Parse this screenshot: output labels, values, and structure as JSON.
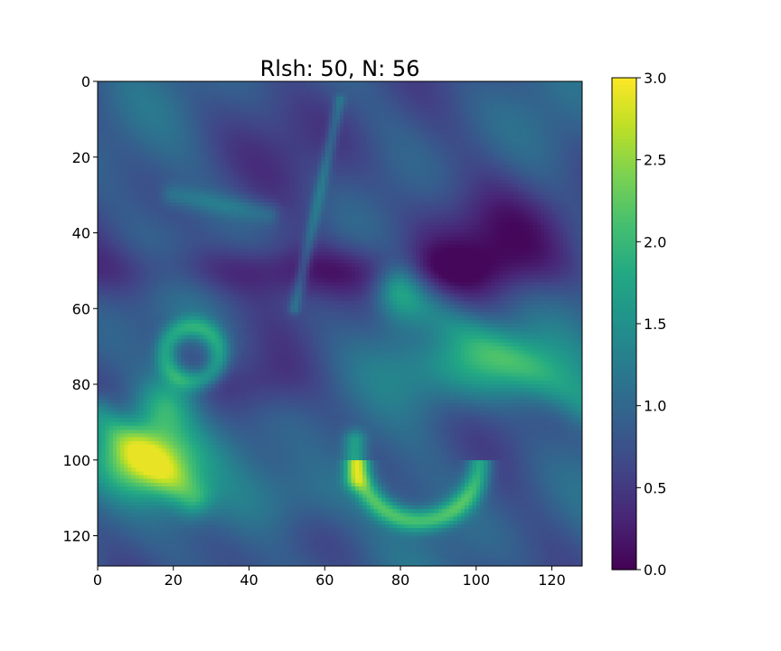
{
  "chart_data": {
    "type": "heatmap",
    "title": "Rlsh: 50, N: 56",
    "xlabel": "",
    "ylabel": "",
    "grid_size": [
      128,
      128
    ],
    "xlim": [
      0,
      128
    ],
    "ylim": [
      128,
      0
    ],
    "x_ticks": [
      "0",
      "20",
      "40",
      "60",
      "80",
      "100",
      "120"
    ],
    "y_ticks": [
      "0",
      "20",
      "40",
      "60",
      "80",
      "100",
      "120"
    ],
    "x_tick_values": [
      0,
      20,
      40,
      60,
      80,
      100,
      120
    ],
    "y_tick_values": [
      0,
      20,
      40,
      60,
      80,
      100,
      120
    ],
    "colorbar": {
      "colormap": "viridis",
      "vmin": 0.0,
      "vmax": 3.0,
      "ticks": [
        "0.0",
        "0.5",
        "1.0",
        "1.5",
        "2.0",
        "2.5",
        "3.0"
      ],
      "tick_values": [
        0.0,
        0.5,
        1.0,
        1.5,
        2.0,
        2.5,
        3.0
      ]
    },
    "features": [
      {
        "region": "dark band",
        "x": [
          0,
          128
        ],
        "y": [
          40,
          60
        ],
        "value": 0.35
      },
      {
        "region": "dark upper-right",
        "x": [
          95,
          128
        ],
        "y": [
          30,
          55
        ],
        "value": 0.3
      },
      {
        "region": "bright lower-left streak",
        "x": [
          0,
          30
        ],
        "y": [
          85,
          115
        ],
        "value": 2.7
      },
      {
        "region": "green arc bottom-center",
        "x": [
          65,
          105
        ],
        "y": [
          95,
          115
        ],
        "value": 2.1
      },
      {
        "region": "green plume right",
        "x": [
          80,
          128
        ],
        "y": [
          60,
          95
        ],
        "value": 1.9
      },
      {
        "region": "green swirl left",
        "x": [
          15,
          35
        ],
        "y": [
          65,
          80
        ],
        "value": 1.8
      },
      {
        "region": "diagonal filament",
        "x": [
          50,
          65
        ],
        "y": [
          5,
          60
        ],
        "value": 1.1
      }
    ]
  }
}
